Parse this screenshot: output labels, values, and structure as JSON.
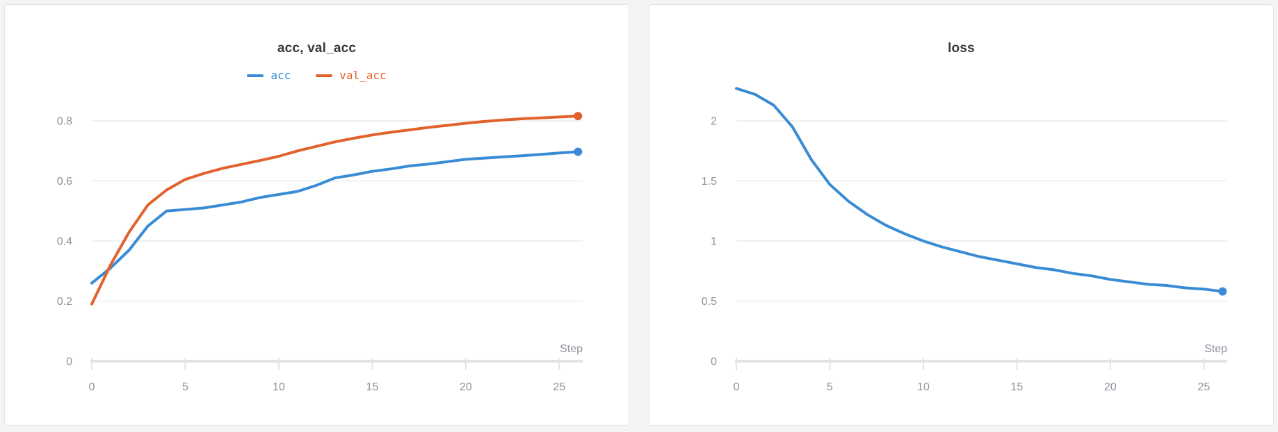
{
  "page": {
    "background": "#f4f4f5",
    "card_background": "#ffffff"
  },
  "colors": {
    "accent_blue": "#3a8bd6",
    "accent_orange": "#e2622e",
    "title_text": "#3a3a3e",
    "tick_text": "#8f919c",
    "gridline": "#ececee",
    "axis_bar": "#e3e3e5"
  },
  "chart_data": [
    {
      "type": "line",
      "title": "acc, val_acc",
      "xlabel": "Step",
      "ylabel": "",
      "x": [
        0,
        1,
        2,
        3,
        4,
        5,
        6,
        7,
        8,
        9,
        10,
        11,
        12,
        13,
        14,
        15,
        16,
        17,
        18,
        19,
        20,
        21,
        22,
        23,
        24,
        25,
        26
      ],
      "series": [
        {
          "name": "acc",
          "color": "#3a8bd6",
          "values": [
            0.26,
            0.31,
            0.37,
            0.45,
            0.5,
            0.505,
            0.51,
            0.52,
            0.53,
            0.545,
            0.555,
            0.565,
            0.585,
            0.61,
            0.62,
            0.632,
            0.64,
            0.65,
            0.656,
            0.664,
            0.672,
            0.676,
            0.68,
            0.684,
            0.688,
            0.693,
            0.697
          ]
        },
        {
          "name": "val_acc",
          "color": "#e2622e",
          "values": [
            0.19,
            0.32,
            0.43,
            0.52,
            0.57,
            0.605,
            0.625,
            0.642,
            0.655,
            0.668,
            0.682,
            0.7,
            0.715,
            0.73,
            0.742,
            0.753,
            0.762,
            0.77,
            0.778,
            0.785,
            0.792,
            0.798,
            0.803,
            0.807,
            0.81,
            0.813,
            0.816
          ]
        }
      ],
      "x_ticks": [
        0,
        5,
        10,
        15,
        20,
        25
      ],
      "y_ticks": [
        0,
        0.2,
        0.4,
        0.6,
        0.8
      ],
      "xlim": [
        0,
        26.25
      ],
      "ylim": [
        0,
        0.9
      ],
      "grid": true,
      "legend_position": "top",
      "end_markers": true
    },
    {
      "type": "line",
      "title": "loss",
      "xlabel": "Step",
      "ylabel": "",
      "x": [
        0,
        1,
        2,
        3,
        4,
        5,
        6,
        7,
        8,
        9,
        10,
        11,
        12,
        13,
        14,
        15,
        16,
        17,
        18,
        19,
        20,
        21,
        22,
        23,
        24,
        25,
        26
      ],
      "series": [
        {
          "name": "loss",
          "color": "#3a8bd6",
          "values": [
            2.27,
            2.22,
            2.13,
            1.95,
            1.68,
            1.47,
            1.33,
            1.22,
            1.13,
            1.06,
            1.0,
            0.95,
            0.91,
            0.87,
            0.84,
            0.81,
            0.78,
            0.76,
            0.73,
            0.71,
            0.68,
            0.66,
            0.64,
            0.63,
            0.61,
            0.6,
            0.58
          ]
        }
      ],
      "x_ticks": [
        0,
        5,
        10,
        15,
        20,
        25
      ],
      "y_ticks": [
        0,
        0.5,
        1,
        1.5,
        2
      ],
      "xlim": [
        0,
        26.25
      ],
      "ylim": [
        0,
        2.35
      ],
      "grid": true,
      "legend_position": "none",
      "end_markers": true
    }
  ]
}
